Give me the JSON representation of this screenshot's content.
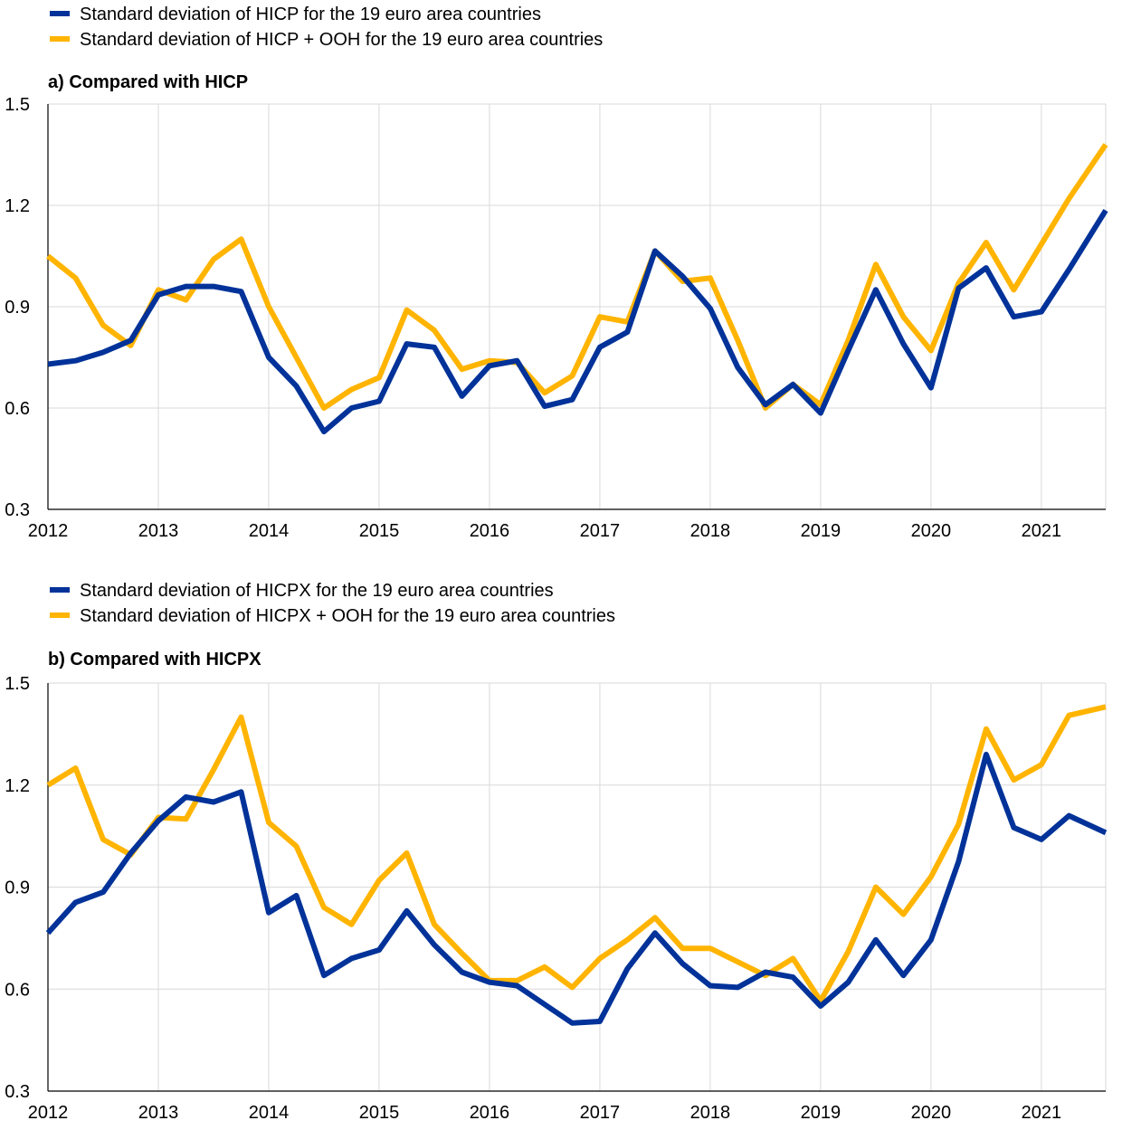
{
  "chart_data": [
    {
      "type": "line",
      "title": "a) Compared with HICP",
      "xlabel": "",
      "ylabel": "",
      "ylim": [
        0.3,
        1.5
      ],
      "yticks": [
        "0.3",
        "0.6",
        "0.9",
        "1.2",
        "1.5"
      ],
      "xlim": [
        2012,
        2021.583
      ],
      "xtick_labels": [
        "2012",
        "2013",
        "2014",
        "2015",
        "2016",
        "2017",
        "2018",
        "2019",
        "2020",
        "2021"
      ],
      "grid": true,
      "legend_position": "top-left",
      "x": [
        2012.0,
        2012.25,
        2012.5,
        2012.75,
        2013.0,
        2013.25,
        2013.5,
        2013.75,
        2014.0,
        2014.25,
        2014.5,
        2014.75,
        2015.0,
        2015.25,
        2015.5,
        2015.75,
        2016.0,
        2016.25,
        2016.5,
        2016.75,
        2017.0,
        2017.25,
        2017.5,
        2017.75,
        2018.0,
        2018.25,
        2018.5,
        2018.75,
        2019.0,
        2019.25,
        2019.5,
        2019.75,
        2020.0,
        2020.25,
        2020.5,
        2020.75,
        2021.0,
        2021.25,
        2021.5833
      ],
      "series": [
        {
          "name": "Standard deviation of HICP for the 19 euro area countries",
          "color": "#003299",
          "values": [
            0.73,
            0.74,
            0.765,
            0.8,
            0.935,
            0.96,
            0.96,
            0.945,
            0.75,
            0.665,
            0.53,
            0.6,
            0.62,
            0.79,
            0.78,
            0.635,
            0.725,
            0.74,
            0.605,
            0.625,
            0.78,
            0.825,
            1.065,
            0.99,
            0.895,
            0.72,
            0.61,
            0.67,
            0.585,
            0.77,
            0.95,
            0.79,
            0.66,
            0.955,
            1.015,
            0.87,
            0.885,
            1.01,
            1.185
          ]
        },
        {
          "name": "Standard deviation of HICP + OOH for the 19 euro area countries",
          "color": "#FFB400",
          "values": [
            1.05,
            0.985,
            0.845,
            0.785,
            0.95,
            0.92,
            1.04,
            1.1,
            0.9,
            0.75,
            0.6,
            0.655,
            0.69,
            0.89,
            0.83,
            0.715,
            0.74,
            0.735,
            0.645,
            0.695,
            0.87,
            0.855,
            1.065,
            0.975,
            0.985,
            0.8,
            0.6,
            0.67,
            0.61,
            0.8,
            1.025,
            0.87,
            0.77,
            0.97,
            1.09,
            0.95,
            1.085,
            1.22,
            1.38
          ]
        }
      ]
    },
    {
      "type": "line",
      "title": "b) Compared with HICPX",
      "xlabel": "",
      "ylabel": "",
      "ylim": [
        0.3,
        1.5
      ],
      "yticks": [
        "0.3",
        "0.6",
        "0.9",
        "1.2",
        "1.5"
      ],
      "xlim": [
        2012,
        2021.583
      ],
      "xtick_labels": [
        "2012",
        "2013",
        "2014",
        "2015",
        "2016",
        "2017",
        "2018",
        "2019",
        "2020",
        "2021"
      ],
      "grid": true,
      "legend_position": "top-left",
      "x": [
        2012.0,
        2012.25,
        2012.5,
        2012.75,
        2013.0,
        2013.25,
        2013.5,
        2013.75,
        2014.0,
        2014.25,
        2014.5,
        2014.75,
        2015.0,
        2015.25,
        2015.5,
        2015.75,
        2016.0,
        2016.25,
        2016.5,
        2016.75,
        2017.0,
        2017.25,
        2017.5,
        2017.75,
        2018.0,
        2018.25,
        2018.5,
        2018.75,
        2019.0,
        2019.25,
        2019.5,
        2019.75,
        2020.0,
        2020.25,
        2020.5,
        2020.75,
        2021.0,
        2021.25,
        2021.5833
      ],
      "series": [
        {
          "name": "Standard deviation of HICPX for the 19 euro area countries",
          "color": "#003299",
          "values": [
            0.765,
            0.855,
            0.885,
            1.0,
            1.095,
            1.165,
            1.15,
            1.18,
            0.825,
            0.875,
            0.64,
            0.69,
            0.715,
            0.83,
            0.73,
            0.65,
            0.62,
            0.61,
            0.555,
            0.5,
            0.505,
            0.66,
            0.765,
            0.675,
            0.61,
            0.605,
            0.65,
            0.635,
            0.55,
            0.62,
            0.745,
            0.64,
            0.745,
            0.975,
            1.29,
            1.075,
            1.04,
            1.11,
            1.06
          ]
        },
        {
          "name": "Standard deviation of HICPX + OOH for the 19 euro area countries",
          "color": "#FFB400",
          "values": [
            1.2,
            1.25,
            1.04,
            0.995,
            1.105,
            1.1,
            1.245,
            1.4,
            1.09,
            1.02,
            0.84,
            0.79,
            0.92,
            1.0,
            0.79,
            0.705,
            0.625,
            0.625,
            0.665,
            0.605,
            0.69,
            0.745,
            0.81,
            0.72,
            0.72,
            0.68,
            0.64,
            0.69,
            0.565,
            0.71,
            0.9,
            0.82,
            0.93,
            1.085,
            1.365,
            1.215,
            1.26,
            1.405,
            1.43
          ]
        }
      ]
    }
  ]
}
